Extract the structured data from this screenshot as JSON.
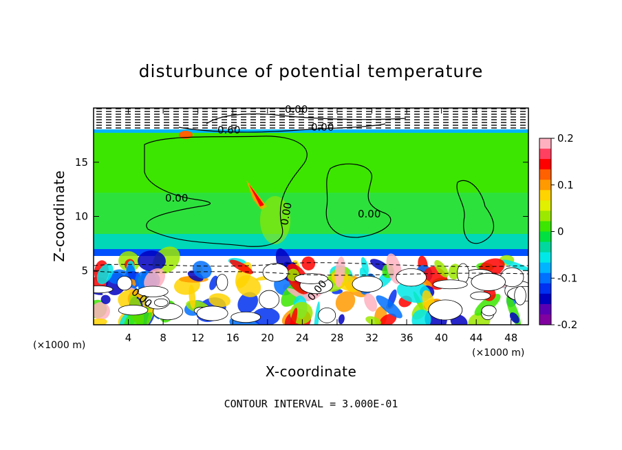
{
  "chart_data": {
    "type": "heatmap",
    "title": "disturbunce of potential temperature",
    "xlabel": "X-coordinate",
    "ylabel": "Z-coordinate",
    "x_unit": "(×1000 m)",
    "y_unit": "(×1000 m)",
    "x_range": [
      0,
      50
    ],
    "y_range": [
      0,
      20
    ],
    "x_ticks": [
      4,
      8,
      12,
      16,
      20,
      24,
      28,
      32,
      36,
      40,
      44,
      48
    ],
    "y_ticks": [
      5,
      10,
      15
    ],
    "colorbar": {
      "range": [
        -0.2,
        0.2
      ],
      "ticks": [
        "0.2",
        "0.1",
        "0",
        "-0.1",
        "-0.2"
      ],
      "colors": [
        "#ffb0c0",
        "#ff4060",
        "#ff0000",
        "#ff6000",
        "#ff9a00",
        "#ffd400",
        "#e0f000",
        "#9ce800",
        "#3ce600",
        "#00e040",
        "#00d8a0",
        "#00e8e8",
        "#00b4ff",
        "#0070ff",
        "#0030f0",
        "#0000c0",
        "#5a00b4",
        "#8000a0"
      ]
    },
    "contour_labels": [
      "0.00",
      "0.00",
      "0.00",
      "0.00",
      "0.00",
      "0.60",
      "0.00",
      "0.00"
    ],
    "contour_interval_text": "CONTOUR INTERVAL = 3.000E-01"
  }
}
